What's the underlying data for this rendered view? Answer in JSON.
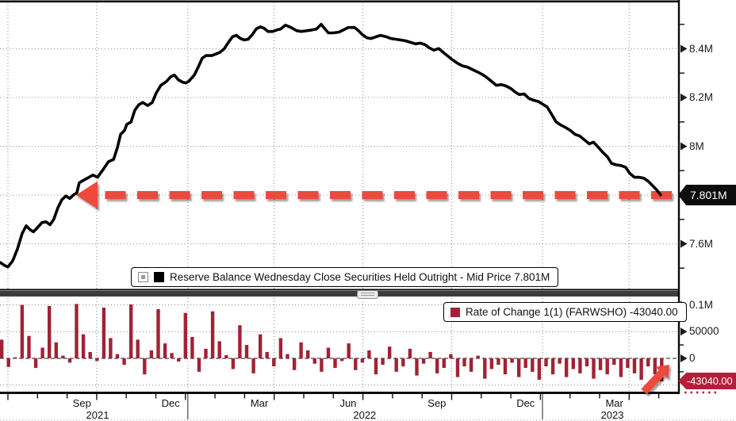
{
  "colors": {
    "bar": "#a12236",
    "line": "#000000",
    "arrow": "#ed4a3e",
    "tag_black_bg": "#0d0d0d",
    "tag_red_bg": "#b41e3a",
    "grid": "#8f8f8f",
    "zero_line": "#4a4a4a"
  },
  "legend_top": {
    "label": "Reserve Balance Wednesday Close Securities Held Outright - Mid Price 7.801M"
  },
  "legend_bottom": {
    "label": "Rate of Change 1(1) (FARWSHO) -43040.00"
  },
  "tags": {
    "price": "7.801M",
    "change": "-43040.00"
  },
  "axes": {
    "top_y_ticks": [
      {
        "label": "8.4M",
        "v": 8.4
      },
      {
        "label": "8.2M",
        "v": 8.2
      },
      {
        "label": "8M",
        "v": 8.0
      },
      {
        "label": "7.6M",
        "v": 7.6
      }
    ],
    "top_minor_v": [
      7.5,
      7.7,
      7.9,
      8.1,
      8.3,
      8.5
    ],
    "top_grid_v": [
      8.4,
      8.2,
      8.0,
      7.8,
      7.6
    ],
    "bottom_y_ticks": [
      {
        "label": "0.1M",
        "v": 100000
      },
      {
        "label": "50000",
        "v": 50000
      },
      {
        "label": "0",
        "v": 0
      }
    ],
    "bottom_minor_v": [
      75000,
      25000,
      -25000
    ],
    "bottom_grid_v": [
      100000,
      50000,
      -50000
    ],
    "month_labels": [
      {
        "label": "Sep",
        "t": 2.5
      },
      {
        "label": "Dec",
        "t": 5.5
      },
      {
        "label": "Mar",
        "t": 8.5
      },
      {
        "label": "Jun",
        "t": 11.5
      },
      {
        "label": "Sep",
        "t": 14.5
      },
      {
        "label": "Dec",
        "t": 17.5
      },
      {
        "label": "Mar",
        "t": 20.5
      }
    ],
    "year_labels": [
      {
        "label": "2021",
        "t": 3.03
      },
      {
        "label": "2022",
        "t": 12.06
      },
      {
        "label": "2023",
        "t": 20.43
      }
    ],
    "year_dividers_t": [
      6.08,
      18.07
    ],
    "quarter_grid_t": [
      0,
      3,
      6.08,
      9,
      12,
      15,
      18.07,
      21
    ]
  },
  "chart_data": {
    "type": "line+bar",
    "x_unit": "months since 2021-07-01",
    "panels": [
      {
        "type": "line",
        "name": "Reserve Balance Wednesday Close Securities Held Outright - Mid Price",
        "last_value_label": "7.801M",
        "ylim": [
          7.45,
          8.58
        ],
        "current_level": 7.801,
        "points": [
          [
            -0.27,
            7.524
          ],
          [
            -0.11,
            7.511
          ],
          [
            0,
            7.505
          ],
          [
            0.16,
            7.53
          ],
          [
            0.32,
            7.578
          ],
          [
            0.48,
            7.642
          ],
          [
            0.62,
            7.674
          ],
          [
            0.75,
            7.658
          ],
          [
            0.86,
            7.649
          ],
          [
            0.99,
            7.665
          ],
          [
            1.15,
            7.687
          ],
          [
            1.29,
            7.69
          ],
          [
            1.42,
            7.678
          ],
          [
            1.55,
            7.7
          ],
          [
            1.69,
            7.748
          ],
          [
            1.82,
            7.78
          ],
          [
            1.96,
            7.796
          ],
          [
            2.09,
            7.786
          ],
          [
            2.23,
            7.802
          ],
          [
            2.33,
            7.809
          ],
          [
            2.41,
            7.85
          ],
          [
            2.55,
            7.86
          ],
          [
            2.68,
            7.869
          ],
          [
            2.87,
            7.882
          ],
          [
            3.03,
            7.873
          ],
          [
            3.22,
            7.905
          ],
          [
            3.4,
            7.937
          ],
          [
            3.57,
            7.946
          ],
          [
            3.7,
            7.994
          ],
          [
            3.81,
            8.049
          ],
          [
            3.94,
            8.065
          ],
          [
            4.02,
            8.09
          ],
          [
            4.16,
            8.1
          ],
          [
            4.29,
            8.148
          ],
          [
            4.42,
            8.17
          ],
          [
            4.56,
            8.18
          ],
          [
            4.72,
            8.167
          ],
          [
            4.88,
            8.18
          ],
          [
            5.01,
            8.218
          ],
          [
            5.17,
            8.25
          ],
          [
            5.36,
            8.266
          ],
          [
            5.5,
            8.285
          ],
          [
            5.63,
            8.292
          ],
          [
            5.76,
            8.273
          ],
          [
            5.9,
            8.263
          ],
          [
            6.01,
            8.26
          ],
          [
            6.11,
            8.266
          ],
          [
            6.3,
            8.292
          ],
          [
            6.43,
            8.324
          ],
          [
            6.57,
            8.362
          ],
          [
            6.7,
            8.372
          ],
          [
            6.89,
            8.372
          ],
          [
            7.02,
            8.378
          ],
          [
            7.16,
            8.385
          ],
          [
            7.32,
            8.401
          ],
          [
            7.45,
            8.426
          ],
          [
            7.59,
            8.449
          ],
          [
            7.72,
            8.455
          ],
          [
            7.86,
            8.442
          ],
          [
            7.99,
            8.436
          ],
          [
            8.12,
            8.439
          ],
          [
            8.26,
            8.458
          ],
          [
            8.39,
            8.481
          ],
          [
            8.53,
            8.49
          ],
          [
            8.66,
            8.484
          ],
          [
            8.79,
            8.471
          ],
          [
            8.95,
            8.471
          ],
          [
            9.09,
            8.477
          ],
          [
            9.22,
            8.481
          ],
          [
            9.38,
            8.497
          ],
          [
            9.57,
            8.487
          ],
          [
            9.76,
            8.474
          ],
          [
            9.92,
            8.471
          ],
          [
            10.11,
            8.474
          ],
          [
            10.27,
            8.477
          ],
          [
            10.43,
            8.481
          ],
          [
            10.59,
            8.5
          ],
          [
            10.72,
            8.481
          ],
          [
            10.83,
            8.465
          ],
          [
            10.99,
            8.465
          ],
          [
            11.18,
            8.468
          ],
          [
            11.34,
            8.477
          ],
          [
            11.5,
            8.487
          ],
          [
            11.72,
            8.487
          ],
          [
            11.85,
            8.474
          ],
          [
            11.98,
            8.458
          ],
          [
            12.14,
            8.445
          ],
          [
            12.28,
            8.442
          ],
          [
            12.44,
            8.449
          ],
          [
            12.6,
            8.455
          ],
          [
            12.79,
            8.449
          ],
          [
            12.95,
            8.442
          ],
          [
            13.11,
            8.439
          ],
          [
            13.27,
            8.436
          ],
          [
            13.43,
            8.433
          ],
          [
            13.62,
            8.426
          ],
          [
            13.78,
            8.42
          ],
          [
            13.94,
            8.423
          ],
          [
            14.1,
            8.417
          ],
          [
            14.24,
            8.404
          ],
          [
            14.4,
            8.394
          ],
          [
            14.56,
            8.401
          ],
          [
            14.69,
            8.388
          ],
          [
            14.85,
            8.372
          ],
          [
            15.01,
            8.356
          ],
          [
            15.2,
            8.34
          ],
          [
            15.36,
            8.33
          ],
          [
            15.55,
            8.324
          ],
          [
            15.71,
            8.314
          ],
          [
            15.87,
            8.305
          ],
          [
            16.03,
            8.295
          ],
          [
            16.19,
            8.282
          ],
          [
            16.35,
            8.266
          ],
          [
            16.51,
            8.25
          ],
          [
            16.68,
            8.253
          ],
          [
            16.84,
            8.247
          ],
          [
            17,
            8.237
          ],
          [
            17.16,
            8.221
          ],
          [
            17.29,
            8.212
          ],
          [
            17.45,
            8.215
          ],
          [
            17.61,
            8.196
          ],
          [
            17.77,
            8.189
          ],
          [
            17.94,
            8.183
          ],
          [
            18.07,
            8.173
          ],
          [
            18.23,
            8.161
          ],
          [
            18.39,
            8.129
          ],
          [
            18.53,
            8.1
          ],
          [
            18.69,
            8.087
          ],
          [
            18.85,
            8.077
          ],
          [
            19.01,
            8.065
          ],
          [
            19.17,
            8.049
          ],
          [
            19.33,
            8.042
          ],
          [
            19.49,
            8.026
          ],
          [
            19.65,
            8.01
          ],
          [
            19.79,
            8.017
          ],
          [
            19.95,
            7.997
          ],
          [
            20.11,
            7.975
          ],
          [
            20.27,
            7.956
          ],
          [
            20.4,
            7.93
          ],
          [
            20.56,
            7.924
          ],
          [
            20.72,
            7.921
          ],
          [
            20.88,
            7.914
          ],
          [
            21.02,
            7.889
          ],
          [
            21.18,
            7.873
          ],
          [
            21.34,
            7.873
          ],
          [
            21.5,
            7.869
          ],
          [
            21.64,
            7.857
          ],
          [
            21.77,
            7.841
          ],
          [
            21.93,
            7.821
          ],
          [
            22.06,
            7.801
          ]
        ]
      },
      {
        "type": "bar",
        "name": "Rate of Change 1(1) (FARWSHO)",
        "last_value": -43040.0,
        "ylim": [
          -75000,
          115000
        ],
        "week_t0": -0.21,
        "week_dt": 0.23,
        "values": [
          35000,
          -16000,
          2000,
          100000,
          42000,
          -18000,
          20000,
          98000,
          30000,
          5000,
          -8000,
          102000,
          45000,
          12000,
          -5000,
          95000,
          38000,
          8000,
          -12000,
          101000,
          35000,
          -30000,
          15000,
          92000,
          28000,
          10000,
          -6000,
          85000,
          40000,
          -25000,
          18000,
          88000,
          32000,
          6000,
          -20000,
          62000,
          25000,
          -28000,
          45000,
          12000,
          -15000,
          38000,
          8000,
          -22000,
          30000,
          15000,
          -10000,
          -25000,
          20000,
          -18000,
          -5000,
          28000,
          -22000,
          -8000,
          15000,
          -30000,
          -12000,
          22000,
          -25000,
          -15000,
          18000,
          -32000,
          -10000,
          12000,
          -28000,
          -18000,
          8000,
          -35000,
          -15000,
          -25000,
          5000,
          -38000,
          -20000,
          -12000,
          -30000,
          -8000,
          -35000,
          -18000,
          -25000,
          -40000,
          -15000,
          -30000,
          -10000,
          -35000,
          -20000,
          -28000,
          -15000,
          -38000,
          -22000,
          -30000,
          -12000,
          -35000,
          -18000,
          -28000,
          -40000,
          -15000,
          -30000,
          -43040
        ]
      }
    ]
  }
}
